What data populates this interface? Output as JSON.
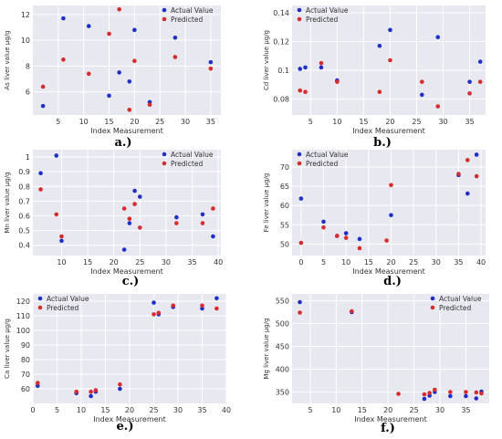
{
  "figure": {
    "captions": [
      "a.)",
      "b.)",
      "c.)",
      "d.)",
      "e.)",
      "f.)"
    ]
  },
  "colors": {
    "actual": "#1f2fc8",
    "predicted": "#d62c2c",
    "plot_bg": "#e8e8f0",
    "grid": "#ffffff",
    "axis_text": "#333333"
  },
  "chart_data": [
    {
      "type": "scatter",
      "caption": "a.)",
      "xlabel": "Index Measurement",
      "ylabel": "As liver value µg/g",
      "xlim": [
        0,
        37
      ],
      "ylim": [
        4.2,
        12.7
      ],
      "xticks": [
        5,
        10,
        15,
        20,
        25,
        30,
        35
      ],
      "yticks": [
        6,
        8,
        10,
        12
      ],
      "legend": "top-right",
      "series": [
        {
          "name": "Actual Value",
          "x": [
            2,
            6,
            11,
            15,
            17,
            19,
            20,
            23,
            28,
            35
          ],
          "y": [
            4.9,
            11.7,
            11.1,
            5.7,
            7.5,
            6.8,
            10.8,
            5.2,
            10.2,
            8.3
          ]
        },
        {
          "name": "Predicted",
          "x": [
            2,
            6,
            11,
            15,
            17,
            19,
            20,
            23,
            28,
            35
          ],
          "y": [
            6.4,
            8.5,
            7.4,
            10.5,
            12.4,
            4.6,
            8.4,
            5.0,
            8.7,
            7.8
          ]
        }
      ]
    },
    {
      "type": "scatter",
      "caption": "b.)",
      "xlabel": "Index Measurement",
      "ylabel": "Cd liver value µg/g",
      "xlim": [
        1.5,
        38
      ],
      "ylim": [
        0.069,
        0.145
      ],
      "xticks": [
        5,
        10,
        15,
        20,
        25,
        30,
        35
      ],
      "yticks": [
        0.08,
        0.1,
        0.12,
        0.14
      ],
      "legend": "top-left",
      "series": [
        {
          "name": "Actual Value",
          "x": [
            3,
            4,
            7,
            10,
            18,
            20,
            26,
            29,
            35,
            37
          ],
          "y": [
            0.101,
            0.102,
            0.102,
            0.093,
            0.117,
            0.128,
            0.083,
            0.123,
            0.092,
            0.106
          ]
        },
        {
          "name": "Predicted",
          "x": [
            3,
            4,
            7,
            10,
            18,
            20,
            26,
            29,
            35,
            37
          ],
          "y": [
            0.086,
            0.085,
            0.105,
            0.092,
            0.085,
            0.107,
            0.092,
            0.075,
            0.084,
            0.092
          ]
        }
      ]
    },
    {
      "type": "scatter",
      "caption": "c.)",
      "xlabel": "Index Measurement",
      "ylabel": "Mn liver value µg/g",
      "xlim": [
        4.5,
        40.5
      ],
      "ylim": [
        0.33,
        1.05
      ],
      "xticks": [
        10,
        15,
        20,
        25,
        30,
        35,
        40
      ],
      "yticks": [
        0.4,
        0.5,
        0.6,
        0.7,
        0.8,
        0.9,
        1.0
      ],
      "legend": "top-right",
      "series": [
        {
          "name": "Actual Value",
          "x": [
            6,
            9,
            10,
            22,
            23,
            24,
            25,
            32,
            37,
            39
          ],
          "y": [
            0.89,
            1.01,
            0.43,
            0.37,
            0.55,
            0.77,
            0.73,
            0.59,
            0.61,
            0.46
          ]
        },
        {
          "name": "Predicted",
          "x": [
            6,
            9,
            10,
            22,
            23,
            24,
            25,
            32,
            37,
            39
          ],
          "y": [
            0.78,
            0.61,
            0.46,
            0.65,
            0.58,
            0.68,
            0.52,
            0.55,
            0.55,
            0.65
          ]
        }
      ]
    },
    {
      "type": "scatter",
      "caption": "d.)",
      "xlabel": "Index Measurement",
      "ylabel": "Fe liver value µg/g",
      "xlim": [
        -2,
        41
      ],
      "ylim": [
        47,
        74.5
      ],
      "xticks": [
        0,
        5,
        10,
        15,
        20,
        25,
        30,
        35,
        40
      ],
      "yticks": [
        50,
        55,
        60,
        65,
        70
      ],
      "legend": "top-left",
      "series": [
        {
          "name": "Actual Value",
          "x": [
            0,
            5,
            8,
            10,
            13,
            20,
            35,
            37,
            39
          ],
          "y": [
            61.8,
            55.8,
            52.1,
            52.8,
            51.3,
            57.5,
            67.9,
            63.1,
            73.2
          ]
        },
        {
          "name": "Predicted",
          "x": [
            0,
            5,
            8,
            10,
            13,
            19,
            20,
            35,
            37,
            39
          ],
          "y": [
            50.3,
            54.3,
            52.1,
            51.6,
            48.9,
            50.9,
            65.3,
            68.2,
            71.8,
            67.6
          ]
        }
      ]
    },
    {
      "type": "scatter",
      "caption": "e.)",
      "xlabel": "Index Measurement",
      "ylabel": "Ca liver value µg/g",
      "xlim": [
        0,
        40
      ],
      "ylim": [
        50,
        125
      ],
      "xticks": [
        0,
        5,
        10,
        15,
        20,
        25,
        30,
        35,
        40
      ],
      "yticks": [
        60,
        70,
        80,
        90,
        100,
        110,
        120
      ],
      "legend": "top-left",
      "series": [
        {
          "name": "Actual Value",
          "x": [
            1,
            9,
            12,
            13,
            18,
            25,
            26,
            29,
            35,
            38
          ],
          "y": [
            62,
            57,
            55,
            58,
            60,
            119,
            111,
            116,
            115,
            122
          ]
        },
        {
          "name": "Predicted",
          "x": [
            1,
            9,
            12,
            13,
            18,
            25,
            26,
            29,
            35,
            38
          ],
          "y": [
            64,
            58,
            58,
            59,
            63,
            111,
            112,
            117,
            117,
            115
          ]
        }
      ]
    },
    {
      "type": "scatter",
      "caption": "f.)",
      "xlabel": "Index Measurement",
      "ylabel": "Mg liver value µg/g",
      "xlim": [
        1.5,
        39.5
      ],
      "ylim": [
        325,
        565
      ],
      "xticks": [
        5,
        10,
        15,
        20,
        25,
        30,
        35
      ],
      "yticks": [
        350,
        400,
        450,
        500,
        550
      ],
      "legend": "top-right",
      "series": [
        {
          "name": "Actual Value",
          "x": [
            3,
            13,
            27,
            28,
            29,
            32,
            35,
            37,
            38
          ],
          "y": [
            547,
            525,
            335,
            342,
            350,
            341,
            341,
            336,
            351
          ]
        },
        {
          "name": "Predicted",
          "x": [
            3,
            13,
            22,
            27,
            28,
            29,
            32,
            35,
            37,
            38
          ],
          "y": [
            524,
            527,
            346,
            345,
            348,
            355,
            350,
            350,
            349,
            347
          ]
        }
      ]
    }
  ]
}
